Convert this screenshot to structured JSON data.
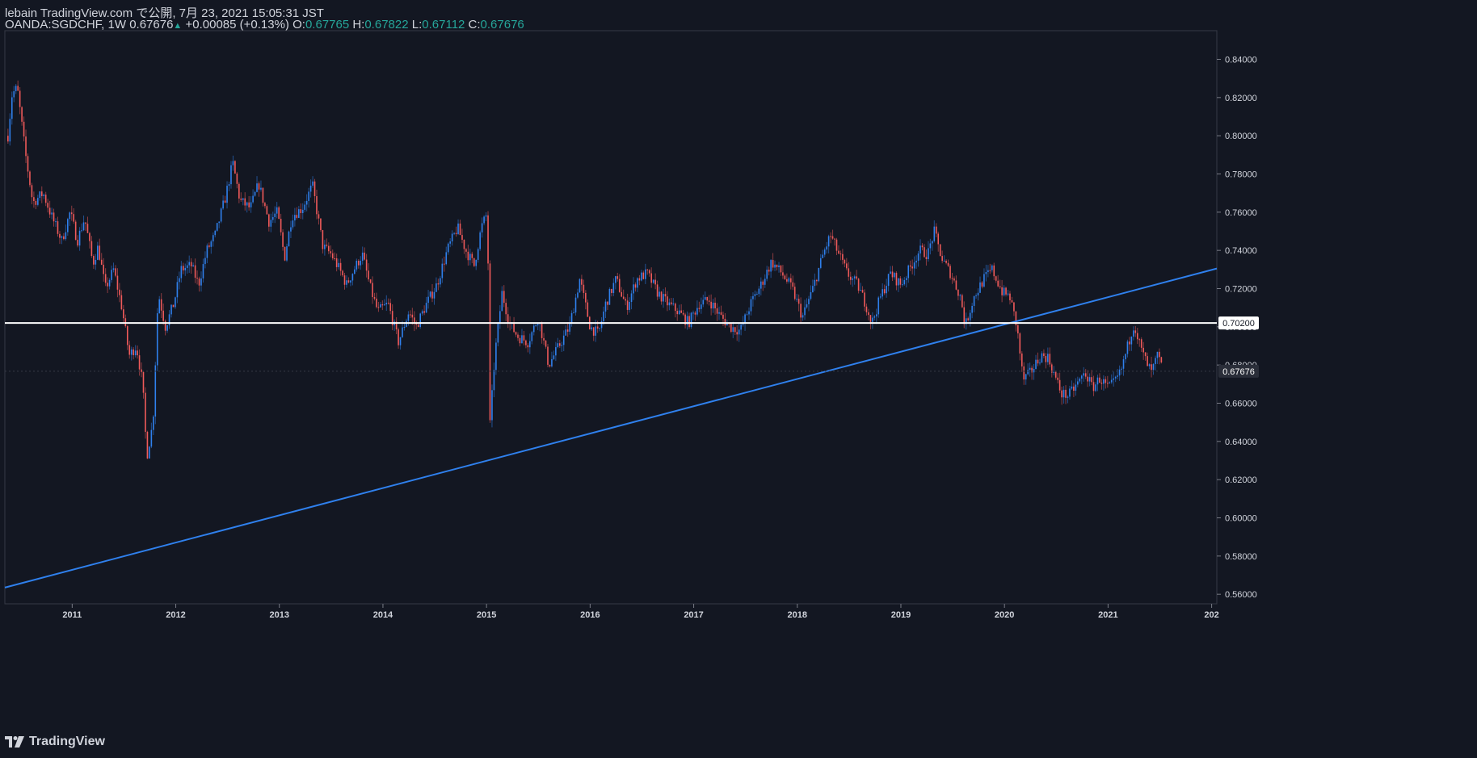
{
  "header": {
    "published": "lebain TradingView.com で公開, 7月 23, 2021 15:05:31 JST",
    "symbol": "OANDA:SGDCHF, 1W",
    "last": "0.67676",
    "change": "+0.00085 (+0.13%)",
    "o_label": "O:",
    "o_value": "0.67765",
    "h_label": "H:",
    "h_value": "0.67822",
    "l_label": "L:",
    "l_value": "0.67112",
    "c_label": "C:",
    "c_value": "0.67676"
  },
  "branding": {
    "name": "TradingView"
  },
  "colors": {
    "background": "#131722",
    "up": "#2f80ed",
    "down": "#f05a5a",
    "trendline": "#2f80ed",
    "hline": "#ffffff",
    "axis_text": "#d1d4dc",
    "header_value": "#26a69a"
  },
  "chart_data": {
    "type": "candlestick",
    "interval": "1W",
    "symbol": "OANDA:SGDCHF",
    "y_range": [
      0.555,
      0.855
    ],
    "y_ticks": [
      "0.84000",
      "0.82000",
      "0.80000",
      "0.78000",
      "0.76000",
      "0.74000",
      "0.72000",
      "0.70000",
      "0.68000",
      "0.66000",
      "0.64000",
      "0.62000",
      "0.60000",
      "0.58000",
      "0.56000"
    ],
    "x_range": [
      2010.35,
      2022.05
    ],
    "x_ticks": [
      "2011",
      "2012",
      "2013",
      "2014",
      "2015",
      "2016",
      "2017",
      "2018",
      "2019",
      "2020",
      "2021",
      "202"
    ],
    "price_path": [
      [
        2010.38,
        0.8
      ],
      [
        2010.42,
        0.822
      ],
      [
        2010.47,
        0.825
      ],
      [
        2010.55,
        0.79
      ],
      [
        2010.62,
        0.765
      ],
      [
        2010.72,
        0.77
      ],
      [
        2010.8,
        0.758
      ],
      [
        2010.9,
        0.745
      ],
      [
        2010.98,
        0.76
      ],
      [
        2011.05,
        0.745
      ],
      [
        2011.12,
        0.757
      ],
      [
        2011.2,
        0.733
      ],
      [
        2011.25,
        0.742
      ],
      [
        2011.32,
        0.72
      ],
      [
        2011.4,
        0.73
      ],
      [
        2011.48,
        0.71
      ],
      [
        2011.55,
        0.685
      ],
      [
        2011.62,
        0.69
      ],
      [
        2011.68,
        0.67
      ],
      [
        2011.72,
        0.632
      ],
      [
        2011.78,
        0.65
      ],
      [
        2011.83,
        0.718
      ],
      [
        2011.9,
        0.7
      ],
      [
        2011.98,
        0.712
      ],
      [
        2012.05,
        0.73
      ],
      [
        2012.15,
        0.732
      ],
      [
        2012.22,
        0.722
      ],
      [
        2012.3,
        0.74
      ],
      [
        2012.38,
        0.748
      ],
      [
        2012.48,
        0.768
      ],
      [
        2012.55,
        0.786
      ],
      [
        2012.62,
        0.766
      ],
      [
        2012.72,
        0.762
      ],
      [
        2012.8,
        0.775
      ],
      [
        2012.9,
        0.755
      ],
      [
        2012.98,
        0.76
      ],
      [
        2013.05,
        0.736
      ],
      [
        2013.12,
        0.758
      ],
      [
        2013.22,
        0.762
      ],
      [
        2013.32,
        0.774
      ],
      [
        2013.42,
        0.742
      ],
      [
        2013.5,
        0.738
      ],
      [
        2013.58,
        0.73
      ],
      [
        2013.65,
        0.722
      ],
      [
        2013.72,
        0.73
      ],
      [
        2013.8,
        0.738
      ],
      [
        2013.88,
        0.72
      ],
      [
        2013.95,
        0.708
      ],
      [
        2014.05,
        0.712
      ],
      [
        2014.15,
        0.692
      ],
      [
        2014.25,
        0.708
      ],
      [
        2014.32,
        0.7
      ],
      [
        2014.42,
        0.712
      ],
      [
        2014.52,
        0.722
      ],
      [
        2014.62,
        0.74
      ],
      [
        2014.72,
        0.752
      ],
      [
        2014.8,
        0.74
      ],
      [
        2014.88,
        0.732
      ],
      [
        2014.95,
        0.752
      ],
      [
        2015.01,
        0.76
      ],
      [
        2015.03,
        0.646
      ],
      [
        2015.08,
        0.685
      ],
      [
        2015.15,
        0.718
      ],
      [
        2015.22,
        0.702
      ],
      [
        2015.3,
        0.695
      ],
      [
        2015.4,
        0.692
      ],
      [
        2015.5,
        0.705
      ],
      [
        2015.6,
        0.68
      ],
      [
        2015.7,
        0.69
      ],
      [
        2015.8,
        0.7
      ],
      [
        2015.9,
        0.725
      ],
      [
        2016.0,
        0.7
      ],
      [
        2016.08,
        0.696
      ],
      [
        2016.15,
        0.712
      ],
      [
        2016.25,
        0.725
      ],
      [
        2016.35,
        0.71
      ],
      [
        2016.45,
        0.725
      ],
      [
        2016.55,
        0.728
      ],
      [
        2016.65,
        0.718
      ],
      [
        2016.75,
        0.712
      ],
      [
        2016.85,
        0.708
      ],
      [
        2016.95,
        0.702
      ],
      [
        2017.05,
        0.712
      ],
      [
        2017.15,
        0.714
      ],
      [
        2017.25,
        0.706
      ],
      [
        2017.35,
        0.7
      ],
      [
        2017.45,
        0.698
      ],
      [
        2017.55,
        0.712
      ],
      [
        2017.65,
        0.722
      ],
      [
        2017.75,
        0.734
      ],
      [
        2017.85,
        0.728
      ],
      [
        2017.95,
        0.72
      ],
      [
        2018.05,
        0.705
      ],
      [
        2018.15,
        0.72
      ],
      [
        2018.25,
        0.738
      ],
      [
        2018.32,
        0.748
      ],
      [
        2018.4,
        0.738
      ],
      [
        2018.48,
        0.728
      ],
      [
        2018.58,
        0.722
      ],
      [
        2018.66,
        0.712
      ],
      [
        2018.72,
        0.702
      ],
      [
        2018.8,
        0.715
      ],
      [
        2018.9,
        0.728
      ],
      [
        2019.0,
        0.722
      ],
      [
        2019.08,
        0.73
      ],
      [
        2019.18,
        0.74
      ],
      [
        2019.26,
        0.738
      ],
      [
        2019.32,
        0.75
      ],
      [
        2019.4,
        0.735
      ],
      [
        2019.48,
        0.728
      ],
      [
        2019.58,
        0.715
      ],
      [
        2019.62,
        0.7
      ],
      [
        2019.7,
        0.715
      ],
      [
        2019.8,
        0.725
      ],
      [
        2019.88,
        0.73
      ],
      [
        2019.98,
        0.718
      ],
      [
        2020.05,
        0.716
      ],
      [
        2020.12,
        0.7
      ],
      [
        2020.18,
        0.672
      ],
      [
        2020.25,
        0.676
      ],
      [
        2020.35,
        0.685
      ],
      [
        2020.42,
        0.684
      ],
      [
        2020.48,
        0.675
      ],
      [
        2020.55,
        0.665
      ],
      [
        2020.62,
        0.664
      ],
      [
        2020.7,
        0.67
      ],
      [
        2020.78,
        0.676
      ],
      [
        2020.85,
        0.668
      ],
      [
        2020.92,
        0.673
      ],
      [
        2021.0,
        0.668
      ],
      [
        2021.05,
        0.67
      ],
      [
        2021.12,
        0.676
      ],
      [
        2021.2,
        0.692
      ],
      [
        2021.25,
        0.702
      ],
      [
        2021.32,
        0.688
      ],
      [
        2021.38,
        0.68
      ],
      [
        2021.42,
        0.676
      ],
      [
        2021.48,
        0.685
      ],
      [
        2021.53,
        0.677
      ]
    ],
    "trendline": {
      "x": [
        2010.35,
        2022.05
      ],
      "y": [
        0.5635,
        0.7305
      ]
    },
    "horizontal_line": {
      "y": 0.702,
      "label": "0.70200"
    },
    "last_price": {
      "y": 0.67676,
      "label": "0.67676"
    },
    "grid": false
  }
}
